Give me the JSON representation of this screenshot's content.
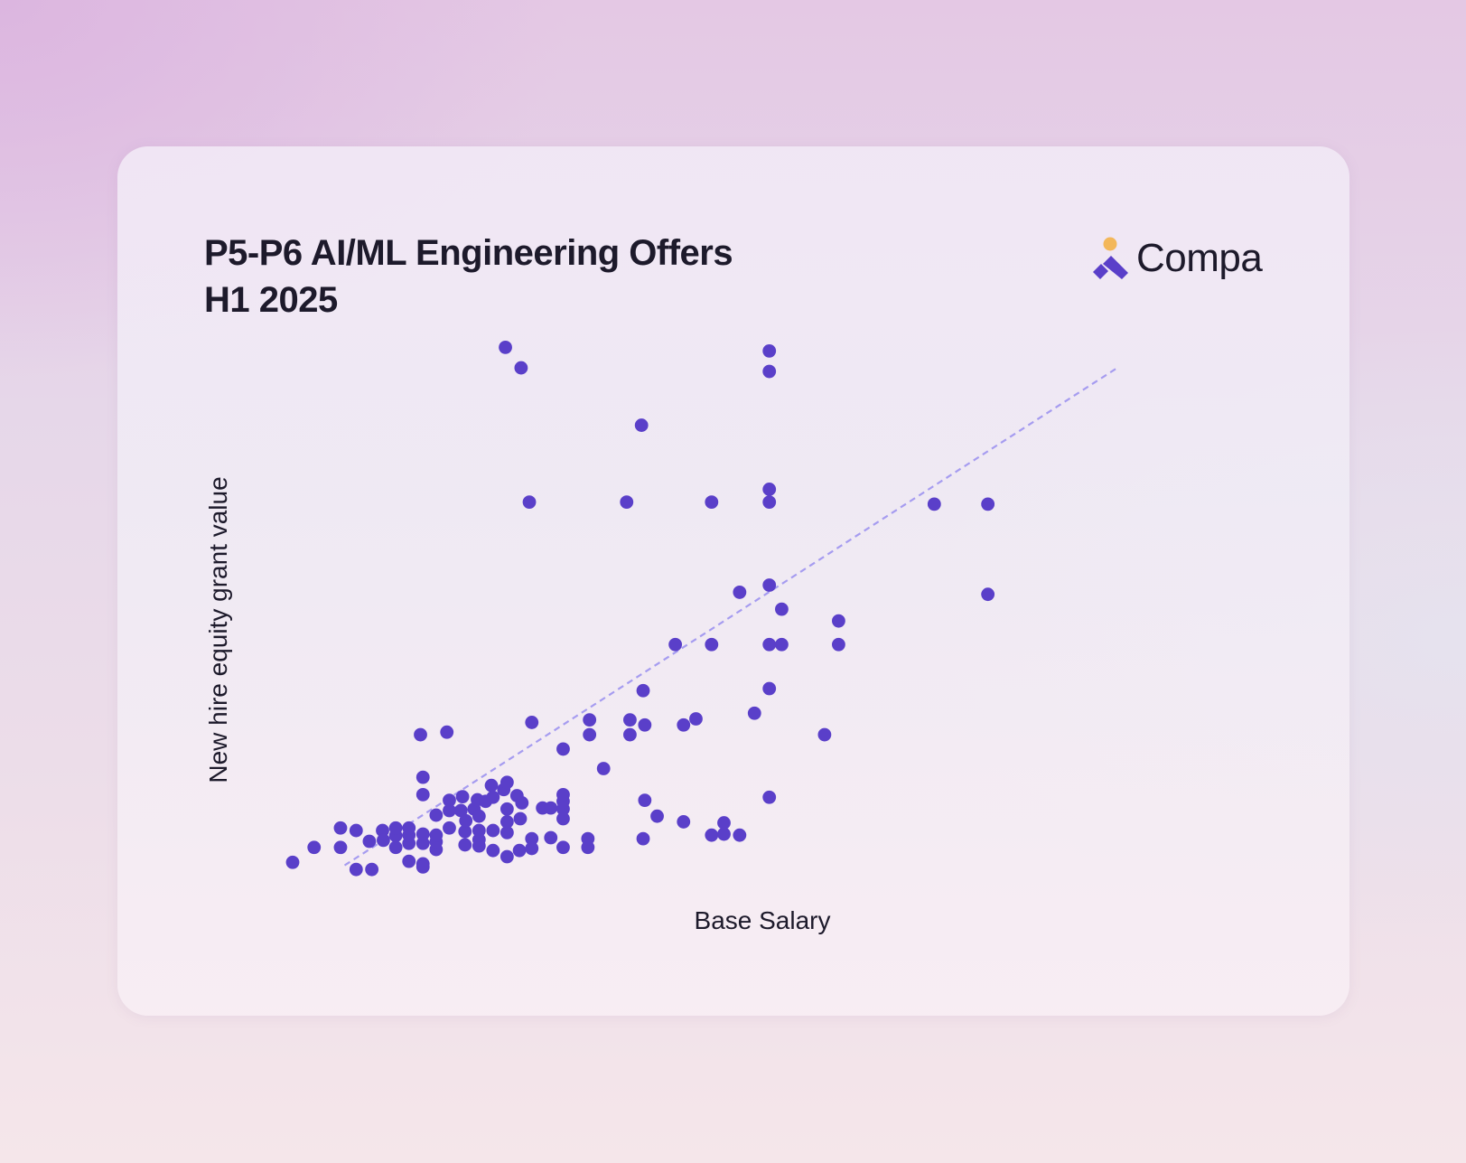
{
  "brand": {
    "name": "Compa",
    "colors": {
      "dot": "#f3b75a",
      "mark": "#5a3fc9",
      "text": "#1d1a2b"
    }
  },
  "chart_data": {
    "type": "scatter",
    "title": [
      "P5-P6 AI/ML Engineering Offers",
      "H1 2025"
    ],
    "xlabel": "Base Salary",
    "ylabel": "New hire equity grant value",
    "xlim": [
      0,
      100
    ],
    "ylim": [
      0,
      100
    ],
    "grid": false,
    "axes_visible": false,
    "colors": {
      "points": "#5a3fc9",
      "trend": "#a69cf0"
    },
    "trend_line": {
      "style": "dashed",
      "from": [
        6.3,
        1.3
      ],
      "to": [
        100,
        98.4
      ]
    },
    "points": [
      [
        0.0,
        1.9
      ],
      [
        2.6,
        4.8
      ],
      [
        5.8,
        4.8
      ],
      [
        5.8,
        8.6
      ],
      [
        7.7,
        0.5
      ],
      [
        7.7,
        8.1
      ],
      [
        9.6,
        0.5
      ],
      [
        9.3,
        6.0
      ],
      [
        10.9,
        8.1
      ],
      [
        11.0,
        6.2
      ],
      [
        12.5,
        4.8
      ],
      [
        12.5,
        7.1
      ],
      [
        12.5,
        8.6
      ],
      [
        14.1,
        5.6
      ],
      [
        14.1,
        7.2
      ],
      [
        14.1,
        8.6
      ],
      [
        14.1,
        2.1
      ],
      [
        15.5,
        26.8
      ],
      [
        15.8,
        1.6
      ],
      [
        15.8,
        1.0
      ],
      [
        15.8,
        5.6
      ],
      [
        15.8,
        7.4
      ],
      [
        15.8,
        15.1
      ],
      [
        15.8,
        18.5
      ],
      [
        17.4,
        4.4
      ],
      [
        17.4,
        5.9
      ],
      [
        17.4,
        7.2
      ],
      [
        17.4,
        11.1
      ],
      [
        19.0,
        8.6
      ],
      [
        19.0,
        12.0
      ],
      [
        19.0,
        14.0
      ],
      [
        18.7,
        27.3
      ],
      [
        20.4,
        12.0
      ],
      [
        20.6,
        14.7
      ],
      [
        20.9,
        5.3
      ],
      [
        20.9,
        7.9
      ],
      [
        21.0,
        10.0
      ],
      [
        22.0,
        12.3
      ],
      [
        22.4,
        14.1
      ],
      [
        22.6,
        5.1
      ],
      [
        22.6,
        6.3
      ],
      [
        22.6,
        8.1
      ],
      [
        22.6,
        10.9
      ],
      [
        23.4,
        13.8
      ],
      [
        24.1,
        16.9
      ],
      [
        24.3,
        14.6
      ],
      [
        24.3,
        4.2
      ],
      [
        24.3,
        8.1
      ],
      [
        25.6,
        16.1
      ],
      [
        26.0,
        3.0
      ],
      [
        26.0,
        7.7
      ],
      [
        26.0,
        9.8
      ],
      [
        26.0,
        12.3
      ],
      [
        26.0,
        17.5
      ],
      [
        25.8,
        102.4
      ],
      [
        27.2,
        14.9
      ],
      [
        27.5,
        4.2
      ],
      [
        27.6,
        10.4
      ],
      [
        27.8,
        13.5
      ],
      [
        27.7,
        98.4
      ],
      [
        28.7,
        72.2
      ],
      [
        29.0,
        6.5
      ],
      [
        29.0,
        4.6
      ],
      [
        29.0,
        29.2
      ],
      [
        30.3,
        12.5
      ],
      [
        31.3,
        12.5
      ],
      [
        31.3,
        6.7
      ],
      [
        32.8,
        4.8
      ],
      [
        32.8,
        10.4
      ],
      [
        32.8,
        12.3
      ],
      [
        32.8,
        13.8
      ],
      [
        32.8,
        15.1
      ],
      [
        32.8,
        24.0
      ],
      [
        35.8,
        4.8
      ],
      [
        35.8,
        6.5
      ],
      [
        36.0,
        26.8
      ],
      [
        36.0,
        29.7
      ],
      [
        37.7,
        20.2
      ],
      [
        40.5,
        72.2
      ],
      [
        40.9,
        26.8
      ],
      [
        40.9,
        29.7
      ],
      [
        42.5,
        6.5
      ],
      [
        42.5,
        35.4
      ],
      [
        42.7,
        14.0
      ],
      [
        42.7,
        28.7
      ],
      [
        42.3,
        87.2
      ],
      [
        44.2,
        10.9
      ],
      [
        47.4,
        9.8
      ],
      [
        47.4,
        28.7
      ],
      [
        48.9,
        29.9
      ],
      [
        46.4,
        44.4
      ],
      [
        50.8,
        44.4
      ],
      [
        50.8,
        72.2
      ],
      [
        50.8,
        7.2
      ],
      [
        52.3,
        7.4
      ],
      [
        52.3,
        9.6
      ],
      [
        54.2,
        7.2
      ],
      [
        54.2,
        54.6
      ],
      [
        56.0,
        31.0
      ],
      [
        57.8,
        14.6
      ],
      [
        57.8,
        35.8
      ],
      [
        57.8,
        44.4
      ],
      [
        57.8,
        56.0
      ],
      [
        57.8,
        72.2
      ],
      [
        57.8,
        74.7
      ],
      [
        57.8,
        97.7
      ],
      [
        57.8,
        101.7
      ],
      [
        59.3,
        44.4
      ],
      [
        59.3,
        51.3
      ],
      [
        64.5,
        26.8
      ],
      [
        66.2,
        44.4
      ],
      [
        66.2,
        49.0
      ],
      [
        77.8,
        71.8
      ],
      [
        84.3,
        71.8
      ],
      [
        84.3,
        54.2
      ]
    ]
  }
}
